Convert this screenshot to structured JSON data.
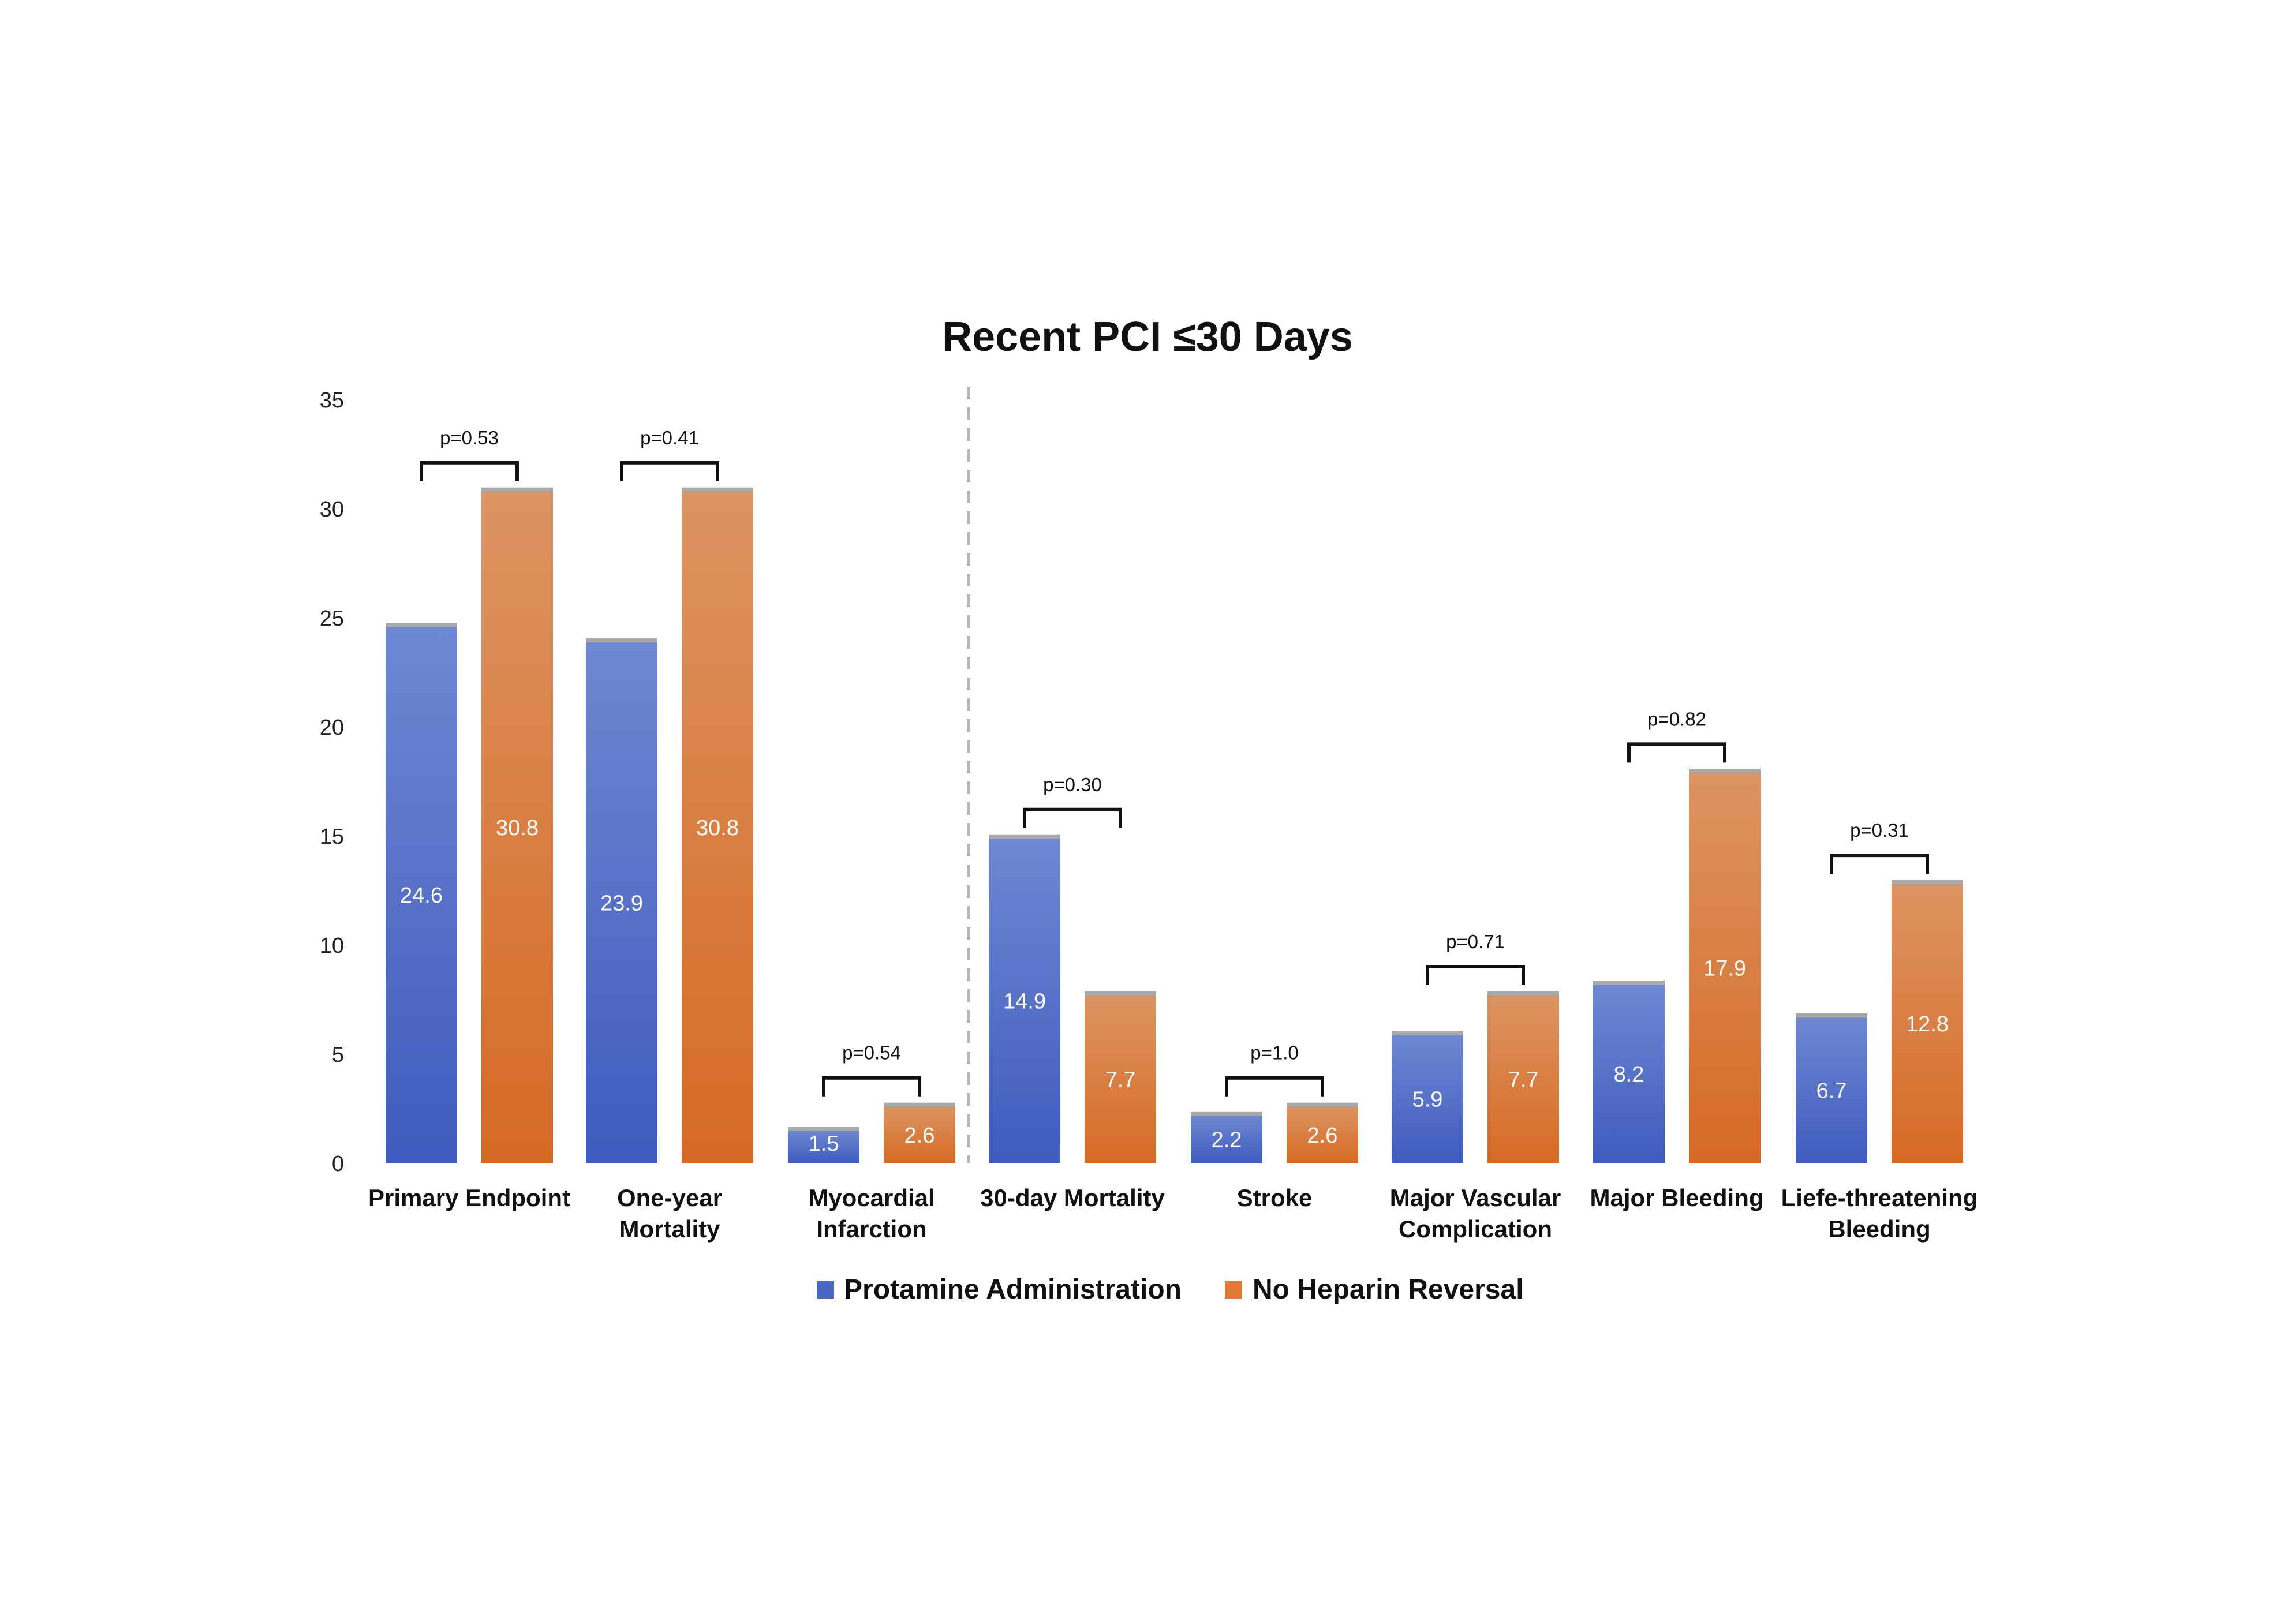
{
  "chart_data": {
    "type": "bar",
    "title": "Recent PCI ≤30 Days",
    "xlabel": "",
    "ylabel": "",
    "ylim": [
      0,
      35
    ],
    "yticks": [
      "0",
      "5",
      "10",
      "15",
      "20",
      "25",
      "30",
      "35"
    ],
    "grid": false,
    "legend_position": "bottom",
    "categories": [
      [
        "Primary Endpoint"
      ],
      [
        "One-year",
        "Mortality"
      ],
      [
        "Myocardial",
        "Infarction"
      ],
      [
        "30-day Mortality"
      ],
      [
        "Stroke"
      ],
      [
        "Major Vascular",
        "Complication"
      ],
      [
        "Major Bleeding"
      ],
      [
        "Liefe-threatening",
        "Bleeding"
      ]
    ],
    "series": [
      {
        "name": "Protamine Administration",
        "color": "#4a67c4",
        "values": [
          24.6,
          23.9,
          1.5,
          14.9,
          2.2,
          5.9,
          8.2,
          6.7
        ],
        "labels": [
          "24.6",
          "23.9",
          "1.5",
          "14.9",
          "2.2",
          "5.9",
          "8.2",
          "6.7"
        ]
      },
      {
        "name": "No Heparin Reversal",
        "color": "#e07a34",
        "values": [
          30.8,
          30.8,
          2.6,
          7.7,
          2.6,
          7.7,
          17.9,
          12.8
        ],
        "labels": [
          "30.8",
          "30.8",
          "2.6",
          "7.7",
          "2.6",
          "7.7",
          "17.9",
          "12.8"
        ]
      }
    ],
    "p_values": [
      "p=0.53",
      "p=0.41",
      "p=0.54",
      "p=0.30",
      "p=1.0",
      "p=0.71",
      "p=0.82",
      "p=0.31"
    ],
    "divider_after_category": 2
  }
}
